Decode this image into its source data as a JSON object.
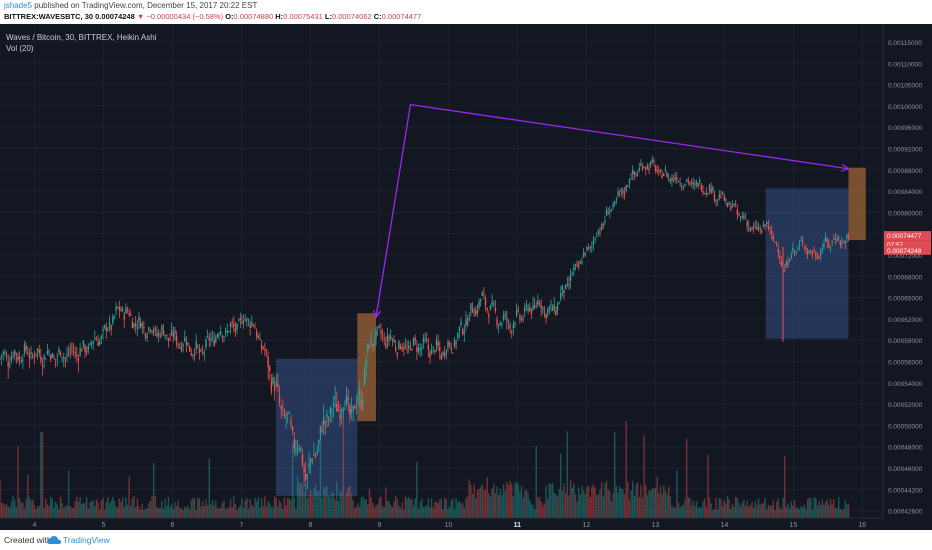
{
  "header": {
    "user": "jshade5",
    "published_text": " published on TradingView.com, December 15, 2017 20:22 EST",
    "symbol": "BITTREX:WAVESBTC, 30",
    "last": "0.00074248",
    "change": "▼ −0.00000434 (−0.58%)",
    "o_label": "O:",
    "o_value": "0.00074880",
    "h_label": "H:",
    "h_value": "0.00075431",
    "l_label": "L:",
    "l_value": "0.00074062",
    "c_label": "C:",
    "c_value": "0.00074477"
  },
  "legend": {
    "title": "Waves / Bitcoin, 30, BITTREX, Heikin Ashi",
    "volume": "Vol (20)"
  },
  "footer": {
    "created_with": "Created with",
    "brand": "TradingView"
  },
  "colors": {
    "background": "#131722",
    "up": "#26a69a",
    "down": "#ef5350",
    "arrow": "#9c27f0",
    "box_blue": "#3a5a9a",
    "box_orange": "#b8733a",
    "price_label": "#e04a52"
  },
  "chart_data": {
    "type": "candlestick",
    "ylim": [
      0.0004,
      0.00117
    ],
    "yticks": [
      "0.00115000",
      "0.00110000",
      "0.00105000",
      "0.00100000",
      "0.00096000",
      "0.00092000",
      "0.00088000",
      "0.00084000",
      "0.00080000",
      "0.00076000",
      "0.00072000",
      "0.00068000",
      "0.00065000",
      "0.00062000",
      "0.00059000",
      "0.00056000",
      "0.00054000",
      "0.00052000",
      "0.00050000",
      "0.00048000",
      "0.00046000",
      "0.00044200",
      "0.00042600"
    ],
    "price_labels": [
      "0.00074477",
      "07:57",
      "0.00074248"
    ],
    "xticks": [
      "4",
      "5",
      "6",
      "7",
      "8",
      "9",
      "10",
      "11",
      "12",
      "13",
      "14",
      "15",
      "16"
    ],
    "xlim": [
      3.5,
      16.3
    ],
    "path_points": [
      [
        3.5,
        0.000565
      ],
      [
        3.9,
        0.000572
      ],
      [
        4.3,
        0.000568
      ],
      [
        4.7,
        0.000575
      ],
      [
        5.0,
        0.000598
      ],
      [
        5.25,
        0.000636
      ],
      [
        5.5,
        0.000612
      ],
      [
        5.9,
        0.000598
      ],
      [
        6.2,
        0.000585
      ],
      [
        6.4,
        0.00057
      ],
      [
        6.6,
        0.000596
      ],
      [
        6.9,
        0.000608
      ],
      [
        7.1,
        0.000622
      ],
      [
        7.25,
        0.000594
      ],
      [
        7.4,
        0.000555
      ],
      [
        7.55,
        0.00052
      ],
      [
        7.7,
        0.000498
      ],
      [
        7.85,
        0.000475
      ],
      [
        7.95,
        0.000452
      ],
      [
        8.1,
        0.000482
      ],
      [
        8.25,
        0.00051
      ],
      [
        8.45,
        0.000522
      ],
      [
        8.6,
        0.000512
      ],
      [
        8.75,
        0.00053
      ],
      [
        8.85,
        0.00058
      ],
      [
        8.95,
        0.000598
      ],
      [
        9.15,
        0.00059
      ],
      [
        9.35,
        0.000578
      ],
      [
        9.6,
        0.000582
      ],
      [
        9.9,
        0.000574
      ],
      [
        10.1,
        0.000588
      ],
      [
        10.3,
        0.000625
      ],
      [
        10.5,
        0.000648
      ],
      [
        10.7,
        0.000622
      ],
      [
        10.9,
        0.000612
      ],
      [
        11.1,
        0.000628
      ],
      [
        11.3,
        0.000642
      ],
      [
        11.5,
        0.000628
      ],
      [
        11.7,
        0.000662
      ],
      [
        11.9,
        0.000705
      ],
      [
        12.1,
        0.000745
      ],
      [
        12.3,
        0.000795
      ],
      [
        12.5,
        0.000835
      ],
      [
        12.7,
        0.000875
      ],
      [
        12.9,
        0.000892
      ],
      [
        13.1,
        0.000872
      ],
      [
        13.4,
        0.000858
      ],
      [
        13.7,
        0.000848
      ],
      [
        13.9,
        0.000832
      ],
      [
        14.1,
        0.000812
      ],
      [
        14.3,
        0.000785
      ],
      [
        14.45,
        0.000764
      ],
      [
        14.6,
        0.000776
      ],
      [
        14.75,
        0.000745
      ],
      [
        14.85,
        0.00069
      ],
      [
        15.0,
        0.000728
      ],
      [
        15.15,
        0.000742
      ],
      [
        15.3,
        0.000718
      ],
      [
        15.45,
        0.000738
      ],
      [
        15.6,
        0.00075
      ],
      [
        15.8,
        0.000745
      ]
    ],
    "volume_ylim": [
      0,
      1
    ]
  },
  "annotations": {
    "arrow_points": [
      [
        8.95,
        0.000622
      ],
      [
        9.45,
        0.001003
      ],
      [
        15.8,
        0.000882
      ]
    ],
    "boxes": [
      {
        "kind": "blue",
        "x0": 7.5,
        "x1": 8.68,
        "y0": 0.000437,
        "y1": 0.000564
      },
      {
        "kind": "orange",
        "x0": 8.68,
        "x1": 8.95,
        "y0": 0.000504,
        "y1": 0.000628
      },
      {
        "kind": "blue",
        "x0": 14.6,
        "x1": 15.8,
        "y0": 0.000592,
        "y1": 0.000845
      },
      {
        "kind": "orange",
        "x0": 15.8,
        "x1": 16.05,
        "y0": 0.000748,
        "y1": 0.000884
      }
    ]
  }
}
